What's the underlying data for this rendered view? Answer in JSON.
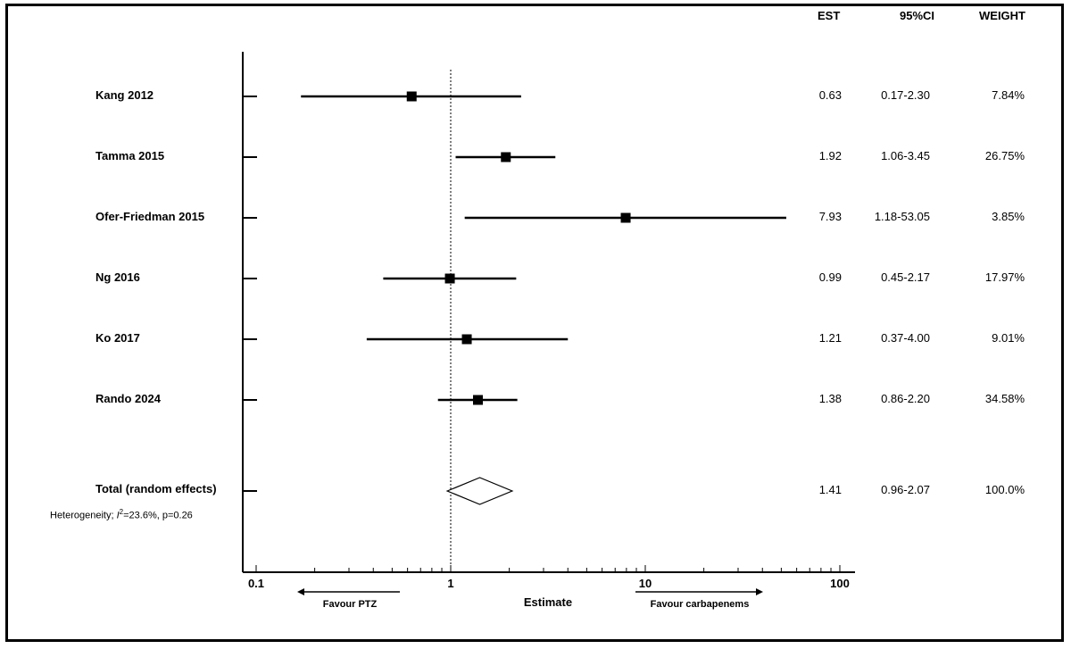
{
  "columns": {
    "est": "EST",
    "ci": "95%CI",
    "weight": "WEIGHT"
  },
  "chart_data": {
    "type": "forest",
    "x_scale": "log",
    "xlim": [
      0.1,
      100
    ],
    "reference_line": 1,
    "xlabel": "Estimate",
    "x_ticks": [
      {
        "value": 0.1,
        "label": "0.1"
      },
      {
        "value": 1,
        "label": "1"
      },
      {
        "value": 10,
        "label": "10"
      },
      {
        "value": 100,
        "label": "100"
      }
    ],
    "direction_left": "Favour PTZ",
    "direction_right": "Favour carbapenems",
    "studies": [
      {
        "name": "Kang 2012",
        "est": 0.63,
        "lower": 0.17,
        "upper": 2.3,
        "est_text": "0.63",
        "ci_text": "0.17-2.30",
        "weight_text": "7.84%",
        "weight": 7.84
      },
      {
        "name": "Tamma 2015",
        "est": 1.92,
        "lower": 1.06,
        "upper": 3.45,
        "est_text": "1.92",
        "ci_text": "1.06-3.45",
        "weight_text": "26.75%",
        "weight": 26.75
      },
      {
        "name": "Ofer-Friedman 2015",
        "est": 7.93,
        "lower": 1.18,
        "upper": 53.05,
        "est_text": "7.93",
        "ci_text": "1.18-53.05",
        "weight_text": "3.85%",
        "weight": 3.85
      },
      {
        "name": "Ng 2016",
        "est": 0.99,
        "lower": 0.45,
        "upper": 2.17,
        "est_text": "0.99",
        "ci_text": "0.45-2.17",
        "weight_text": "17.97%",
        "weight": 17.97
      },
      {
        "name": "Ko 2017",
        "est": 1.21,
        "lower": 0.37,
        "upper": 4.0,
        "est_text": "1.21",
        "ci_text": "0.37-4.00",
        "weight_text": "9.01%",
        "weight": 9.01
      },
      {
        "name": "Rando 2024",
        "est": 1.38,
        "lower": 0.86,
        "upper": 2.2,
        "est_text": "1.38",
        "ci_text": "0.86-2.20",
        "weight_text": "34.58%",
        "weight": 34.58
      }
    ],
    "total": {
      "name": "Total (random effects)",
      "est": 1.41,
      "lower": 0.96,
      "upper": 2.07,
      "est_text": "1.41",
      "ci_text": "0.96-2.07",
      "weight_text": "100.0%"
    },
    "heterogeneity": {
      "prefix": "Heterogeneity; ",
      "i_symbol": "I",
      "sup": "2",
      "rest": "=23.6%, p=0.26"
    }
  }
}
